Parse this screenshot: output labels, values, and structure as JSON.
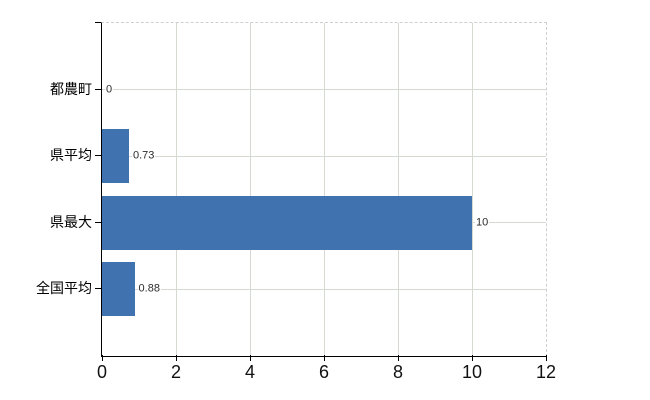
{
  "chart_data": {
    "type": "bar",
    "orientation": "horizontal",
    "title": "",
    "xlabel": "",
    "ylabel": "",
    "categories": [
      "都農町",
      "県平均",
      "県最大",
      "全国平均"
    ],
    "values": [
      0,
      0.73,
      10,
      0.88
    ],
    "value_labels": [
      "0",
      "0.73",
      "10",
      "0.88"
    ],
    "xlim": [
      0,
      12
    ],
    "x_ticks": [
      "0",
      "2",
      "4",
      "6",
      "8",
      "10",
      "12"
    ],
    "x_tick_values": [
      0,
      2,
      4,
      6,
      8,
      10,
      12
    ],
    "grid": true,
    "legend": false,
    "bar_color": "#3f72ae",
    "grid_color": "#d4dad2",
    "axis_color": "#000000",
    "plot_border_color": "#cfcfcf",
    "background_color": "#ffffff"
  }
}
